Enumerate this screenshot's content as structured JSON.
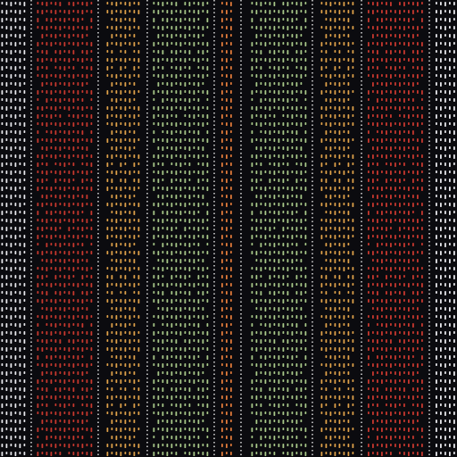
{
  "pattern": {
    "background": "#0b0b0f",
    "stripes": [
      {
        "name": "white-outer",
        "color": "#e8e8ec"
      },
      {
        "name": "red",
        "color": "#c8382e"
      },
      {
        "name": "amber",
        "color": "#e0a24a"
      },
      {
        "name": "green",
        "color": "#a9c98a"
      },
      {
        "name": "orange-center",
        "color": "#e07a3a"
      },
      {
        "name": "green",
        "color": "#a9c98a"
      },
      {
        "name": "amber",
        "color": "#e0a24a"
      },
      {
        "name": "red",
        "color": "#c8382e"
      },
      {
        "name": "white-outer",
        "color": "#e8e8ec"
      }
    ],
    "separator_color": "#f2f2f2"
  }
}
